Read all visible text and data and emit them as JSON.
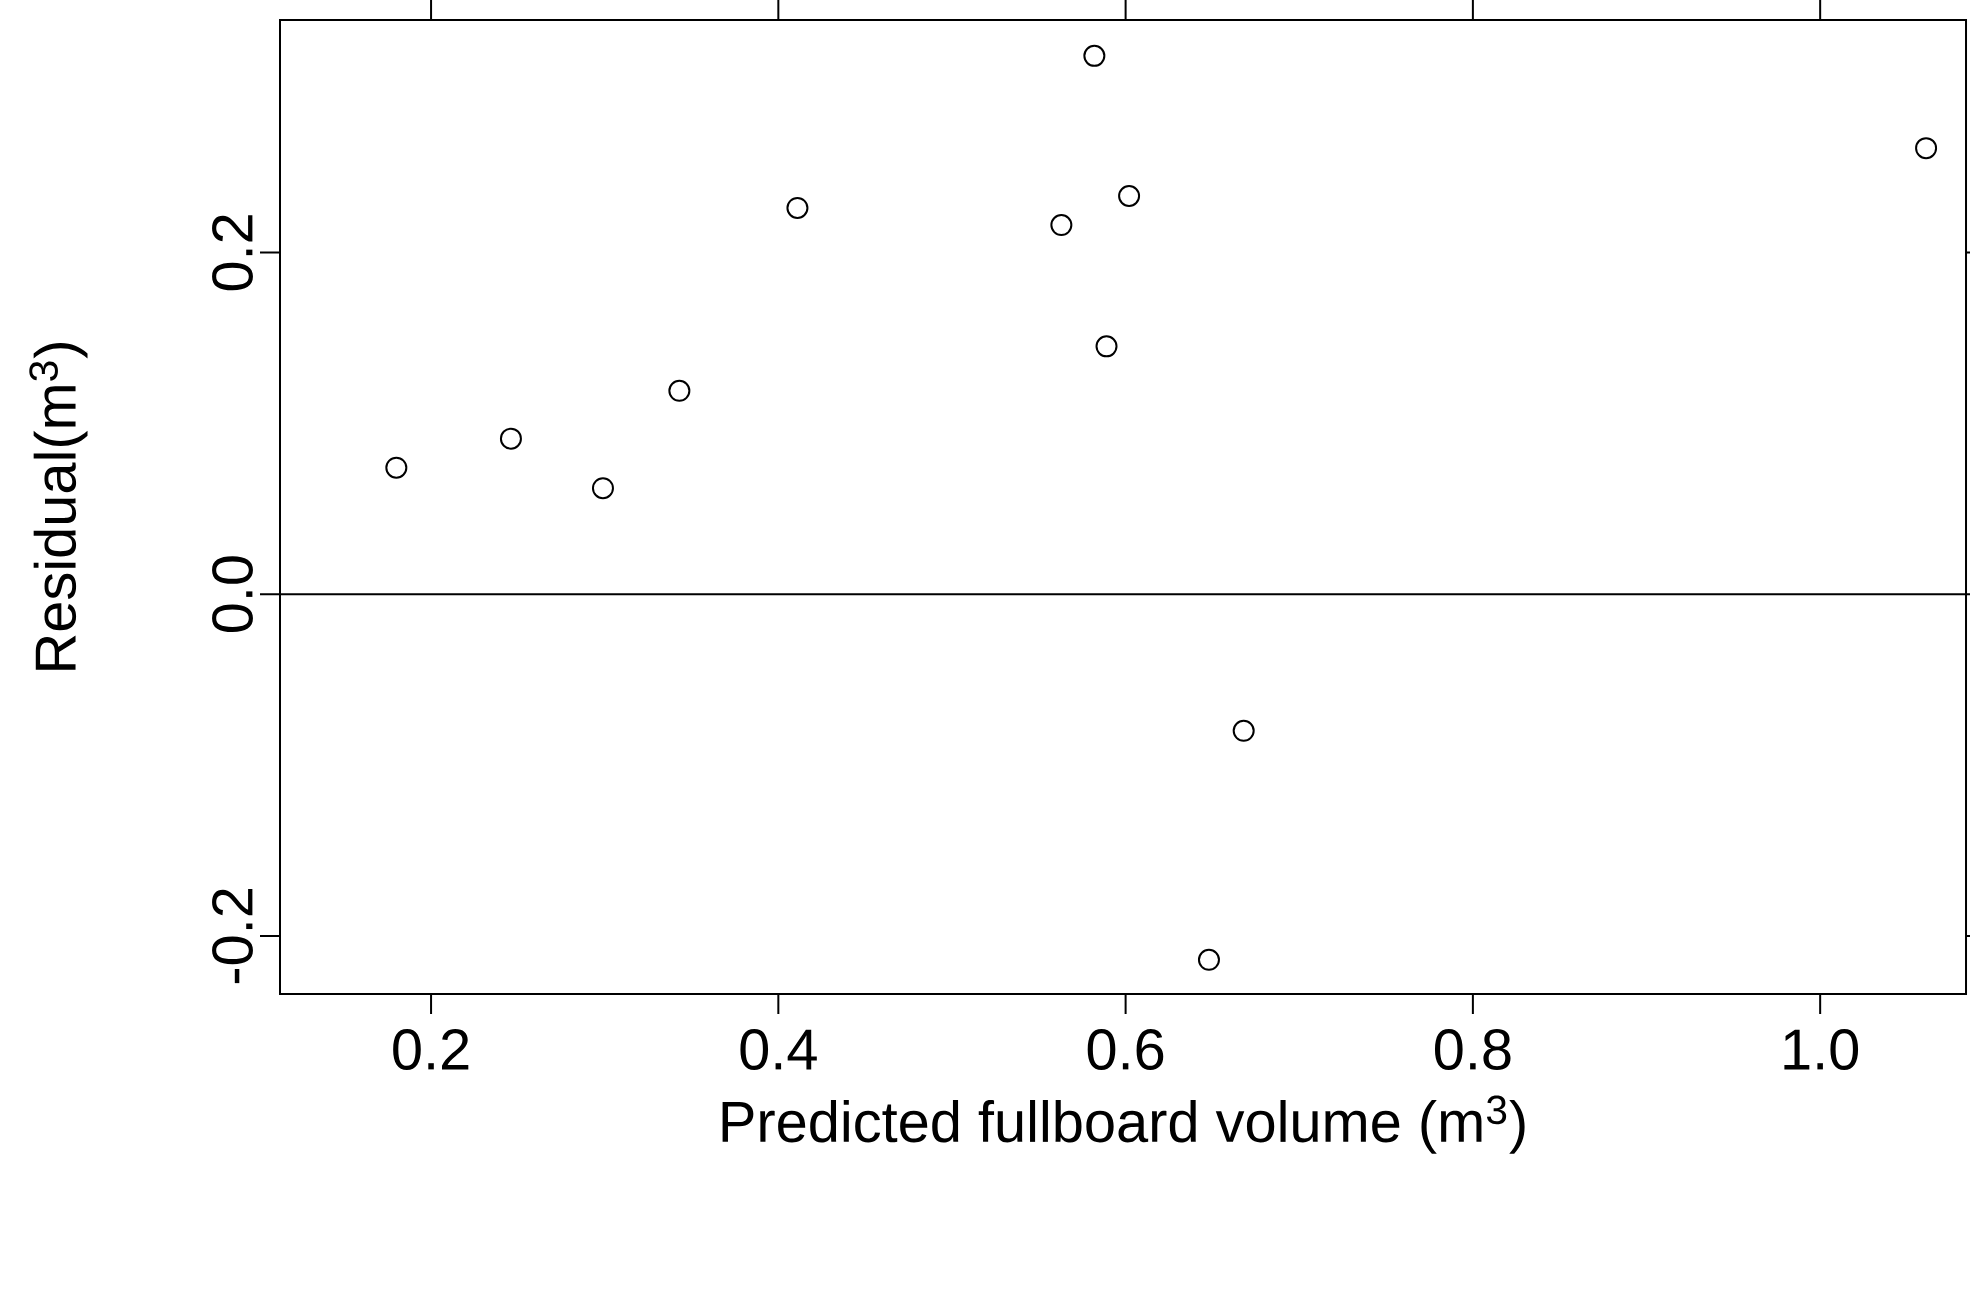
{
  "chart_data": {
    "type": "scatter",
    "xlabel": "Predicted fullboard volume (m$^{3}$)",
    "ylabel": "Residual(m$^{3}$)",
    "x": [
      0.18,
      0.246,
      0.299,
      0.343,
      0.411,
      0.563,
      0.582,
      0.589,
      0.602,
      0.668,
      0.648,
      1.061
    ],
    "series": [
      {
        "color": "#000000",
        "values": [
          0.074,
          0.091,
          0.062,
          0.119,
          0.226,
          0.216,
          0.315,
          0.145,
          0.233,
          -0.08,
          -0.214,
          0.261
        ]
      }
    ],
    "xlim": [
      0.113,
      1.084
    ],
    "ylim": [
      -0.234,
      0.336
    ],
    "xticks": [
      0.2,
      0.4,
      0.6,
      0.8,
      {
        "value": 1.0,
        "label": "1.0"
      }
    ],
    "yticks": [
      -0.2,
      {
        "value": 0,
        "label": "0.0"
      },
      0.2
    ],
    "ref_lines": [
      {
        "axis": "y",
        "value": 0,
        "color": "#000000"
      }
    ],
    "marker": "circle"
  }
}
